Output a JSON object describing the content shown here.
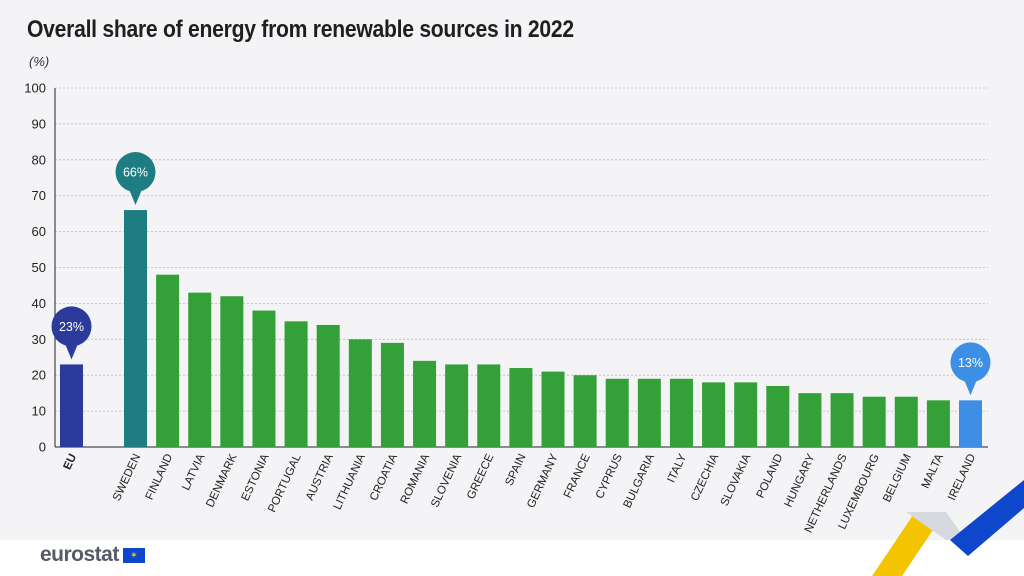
{
  "title": "Overall share of energy from renewable sources in 2022",
  "unit": "(%)",
  "logo_text": "eurostat",
  "colors": {
    "eu_bar": "#2b3a9b",
    "top_bar": "#1e7d82",
    "bar": "#34a038",
    "bottom_bar": "#3d8fe6",
    "accent_yellow": "#f5c400",
    "accent_blue": "#0e47cb"
  },
  "chart_data": {
    "type": "bar",
    "title": "Overall share of energy from renewable sources in 2022",
    "ylabel": "(%)",
    "xlabel": "",
    "ylim": [
      0,
      100
    ],
    "yticks": [
      0,
      10,
      20,
      30,
      40,
      50,
      60,
      70,
      80,
      90,
      100
    ],
    "grid": true,
    "categories": [
      "EU",
      "SWEDEN",
      "FINLAND",
      "LATVIA",
      "DENMARK",
      "ESTONIA",
      "PORTUGAL",
      "AUSTRIA",
      "LITHUANIA",
      "CROATIA",
      "ROMANIA",
      "SLOVENIA",
      "GREECE",
      "SPAIN",
      "GERMANY",
      "FRANCE",
      "CYPRUS",
      "BULGARIA",
      "ITALY",
      "CZECHIA",
      "SLOVAKIA",
      "POLAND",
      "HUNGARY",
      "NETHERLANDS",
      "LUXEMBOURG",
      "BELGIUM",
      "MALTA",
      "IRELAND"
    ],
    "values": [
      23,
      66,
      48,
      43,
      42,
      38,
      35,
      34,
      30,
      29,
      24,
      23,
      23,
      22,
      21,
      20,
      19,
      19,
      19,
      18,
      18,
      17,
      15,
      15,
      14,
      14,
      13,
      13
    ],
    "callouts": [
      {
        "category": "EU",
        "text": "23%"
      },
      {
        "category": "SWEDEN",
        "text": "66%"
      },
      {
        "category": "IRELAND",
        "text": "13%"
      }
    ]
  }
}
